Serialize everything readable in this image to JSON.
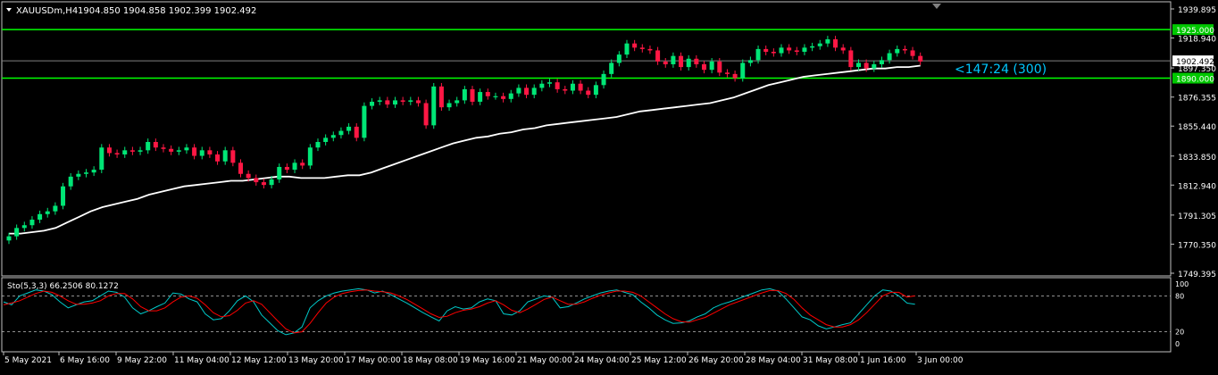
{
  "colors": {
    "background": "#000000",
    "frame": "#c0c0c0",
    "bull_candle": "#00e676",
    "bear_candle": "#ff1744",
    "moving_average": "#ffffff",
    "level_line": "#00ff00",
    "level_label_bg": "#00c800",
    "price_line": "#808080",
    "stoch_main": "#00c8c8",
    "stoch_signal": "#ff0000",
    "countdown": "#00c8ff"
  },
  "header": {
    "symbol_timeframe": "XAUUSDm,H4",
    "ohlc": "1904.850 1904.858 1902.399 1902.492"
  },
  "price_axis": {
    "labels": [
      "1939.895",
      "1918.940",
      "1897.350",
      "1876.355",
      "1855.440",
      "1833.850",
      "1812.940",
      "1791.305",
      "1770.350",
      "1749.395"
    ]
  },
  "level_labels": {
    "upper": "1925.000",
    "lower": "1890.000",
    "current": "1902.492"
  },
  "countdown": {
    "text": "<147:24 (300)"
  },
  "stochastic": {
    "title": "Sto(5,3,3) 66.2506 80.1272",
    "levels": [
      "100",
      "80",
      "20",
      "0"
    ]
  },
  "time_axis": {
    "labels": [
      "5 May 2021",
      "6 May 16:00",
      "9 May 22:00",
      "11 May 04:00",
      "12 May 12:00",
      "13 May 20:00",
      "17 May 00:00",
      "18 May 08:00",
      "19 May 16:00",
      "21 May 00:00",
      "24 May 04:00",
      "25 May 12:00",
      "26 May 20:00",
      "28 May 04:00",
      "31 May 08:00",
      "1 Jun 16:00",
      "3 Jun 00:00"
    ]
  },
  "chart_data": {
    "type": "candlestick",
    "symbol": "XAUUSDm",
    "timeframe": "H4",
    "ylim": [
      1749.395,
      1939.895
    ],
    "levels": [
      1925.0,
      1890.0
    ],
    "current_price": 1902.492,
    "closes": [
      1776,
      1782,
      1784,
      1788,
      1792,
      1794,
      1798,
      1812,
      1819,
      1821,
      1822,
      1824,
      1840,
      1836,
      1835,
      1838,
      1837,
      1838,
      1844,
      1840,
      1839,
      1837,
      1838,
      1840,
      1834,
      1838,
      1835,
      1830,
      1838,
      1829,
      1821,
      1818,
      1815,
      1813,
      1817,
      1826,
      1824,
      1829,
      1827,
      1840,
      1844,
      1847,
      1849,
      1852,
      1855,
      1847,
      1870,
      1873,
      1874,
      1871,
      1874,
      1873,
      1874,
      1872,
      1856,
      1884,
      1869,
      1872,
      1874,
      1882,
      1873,
      1880,
      1877,
      1877,
      1875,
      1879,
      1883,
      1878,
      1883,
      1886,
      1887,
      1882,
      1881,
      1886,
      1881,
      1878,
      1885,
      1893,
      1901,
      1907,
      1915,
      1912,
      1911,
      1910,
      1902,
      1900,
      1906,
      1898,
      1904,
      1900,
      1896,
      1902,
      1894,
      1893,
      1890,
      1901,
      1903,
      1911,
      1909,
      1908,
      1912,
      1910,
      1909,
      1912,
      1913,
      1915,
      1918,
      1912,
      1910,
      1898,
      1901,
      1897,
      1900,
      1903,
      1908,
      1911,
      1910,
      1906,
      1902
    ],
    "moving_average": [
      1778,
      1778,
      1779,
      1780,
      1782,
      1786,
      1790,
      1794,
      1797,
      1799,
      1801,
      1803,
      1806,
      1808,
      1810,
      1812,
      1813,
      1814,
      1815,
      1816,
      1816,
      1817,
      1818,
      1819,
      1819,
      1818,
      1818,
      1818,
      1819,
      1820,
      1820,
      1822,
      1825,
      1828,
      1831,
      1834,
      1837,
      1840,
      1843,
      1845,
      1847,
      1848,
      1850,
      1851,
      1853,
      1854,
      1856,
      1857,
      1858,
      1859,
      1860,
      1861,
      1862,
      1864,
      1866,
      1867,
      1868,
      1869,
      1870,
      1871,
      1872,
      1874,
      1876,
      1879,
      1882,
      1885,
      1887,
      1889,
      1891,
      1892,
      1893,
      1894,
      1895,
      1896,
      1897,
      1897,
      1898,
      1898,
      1899
    ],
    "stochastic_main": [
      70,
      65,
      80,
      85,
      90,
      88,
      82,
      70,
      60,
      65,
      70,
      72,
      80,
      88,
      86,
      78,
      60,
      50,
      55,
      62,
      68,
      85,
      83,
      75,
      70,
      50,
      40,
      42,
      55,
      72,
      80,
      70,
      48,
      35,
      22,
      15,
      18,
      28,
      60,
      72,
      80,
      85,
      88,
      90,
      92,
      90,
      85,
      88,
      82,
      75,
      68,
      60,
      52,
      45,
      38,
      55,
      62,
      58,
      60,
      70,
      75,
      72,
      50,
      48,
      55,
      70,
      75,
      80,
      78,
      60,
      62,
      68,
      75,
      80,
      85,
      88,
      90,
      86,
      82,
      70,
      60,
      48,
      40,
      34,
      35,
      38,
      45,
      50,
      60,
      66,
      70,
      75,
      80,
      85,
      90,
      92,
      88,
      75,
      60,
      45,
      40,
      30,
      25,
      28,
      32,
      35,
      50,
      65,
      80,
      90,
      88,
      80,
      68,
      66
    ],
    "stochastic_signal": [
      65,
      68,
      72,
      78,
      84,
      88,
      86,
      80,
      72,
      66,
      66,
      68,
      72,
      80,
      84,
      84,
      75,
      62,
      55,
      55,
      60,
      70,
      78,
      80,
      76,
      65,
      52,
      45,
      47,
      56,
      68,
      72,
      66,
      52,
      38,
      25,
      18,
      20,
      34,
      52,
      68,
      78,
      84,
      87,
      89,
      90,
      88,
      87,
      85,
      80,
      74,
      66,
      58,
      50,
      44,
      46,
      52,
      56,
      58,
      62,
      68,
      72,
      65,
      56,
      52,
      58,
      66,
      74,
      78,
      72,
      66,
      66,
      70,
      76,
      81,
      85,
      88,
      88,
      86,
      80,
      70,
      60,
      50,
      42,
      37,
      36,
      40,
      44,
      51,
      58,
      65,
      70,
      75,
      80,
      85,
      89,
      89,
      84,
      74,
      60,
      48,
      40,
      32,
      28,
      28,
      32,
      40,
      52,
      66,
      80,
      86,
      86,
      78,
      80
    ]
  }
}
